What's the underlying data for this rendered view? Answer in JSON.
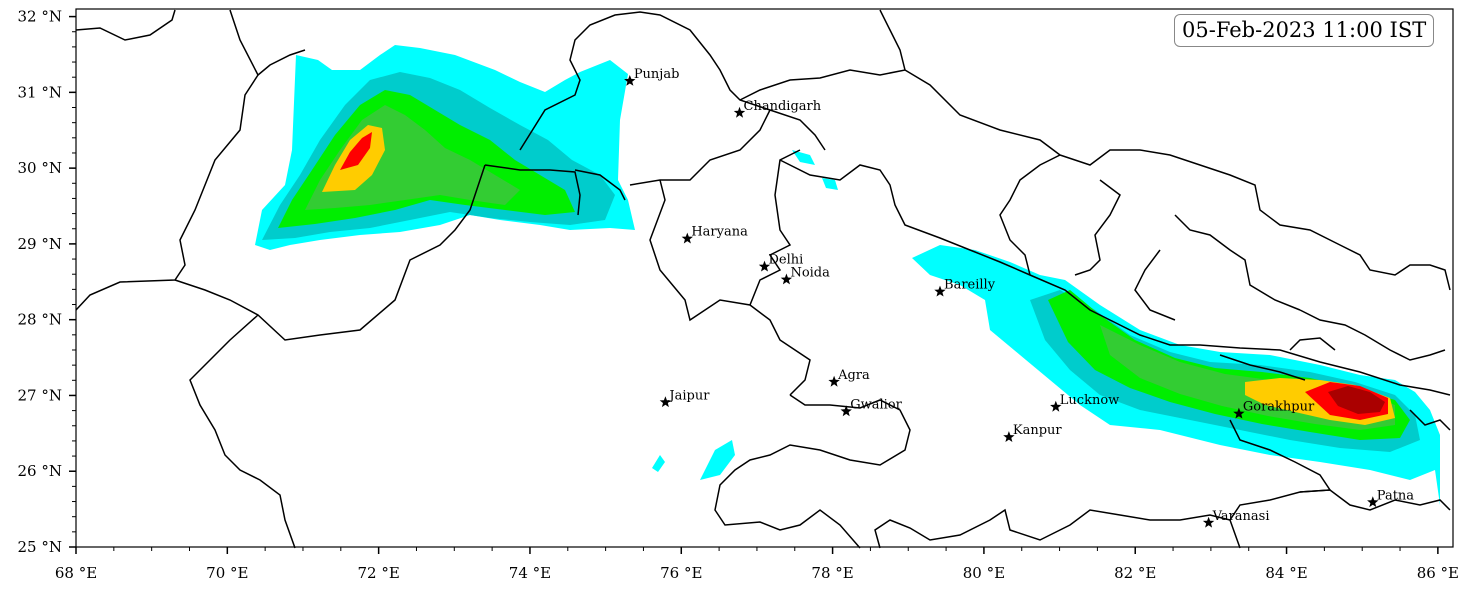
{
  "timestamp": "05-Feb-2023 11:00 IST",
  "axes": {
    "lon_min": 68,
    "lon_max": 86.2,
    "lat_min": 25,
    "lat_max": 32.1,
    "x_ticks": [
      {
        "value": 68,
        "label": "68 °E"
      },
      {
        "value": 70,
        "label": "70 °E"
      },
      {
        "value": 72,
        "label": "72 °E"
      },
      {
        "value": 74,
        "label": "74 °E"
      },
      {
        "value": 76,
        "label": "76 °E"
      },
      {
        "value": 78,
        "label": "78 °E"
      },
      {
        "value": 80,
        "label": "80 °E"
      },
      {
        "value": 82,
        "label": "82 °E"
      },
      {
        "value": 84,
        "label": "84 °E"
      },
      {
        "value": 86,
        "label": "86 °E"
      }
    ],
    "y_ticks": [
      {
        "value": 25,
        "label": "25 °N"
      },
      {
        "value": 26,
        "label": "26 °N"
      },
      {
        "value": 27,
        "label": "27 °N"
      },
      {
        "value": 28,
        "label": "28 °N"
      },
      {
        "value": 29,
        "label": "29 °N"
      },
      {
        "value": 30,
        "label": "30 °N"
      },
      {
        "value": 31,
        "label": "31 °N"
      },
      {
        "value": 32,
        "label": "32 °N"
      }
    ]
  },
  "cities": [
    {
      "name": "Punjab",
      "lon": 75.32,
      "lat": 31.15
    },
    {
      "name": "Chandigarh",
      "lon": 76.77,
      "lat": 30.73
    },
    {
      "name": "Haryana",
      "lon": 76.08,
      "lat": 29.07
    },
    {
      "name": "Delhi",
      "lon": 77.1,
      "lat": 28.7
    },
    {
      "name": "Noida",
      "lon": 77.39,
      "lat": 28.53
    },
    {
      "name": "Bareilly",
      "lon": 79.42,
      "lat": 28.37
    },
    {
      "name": "Agra",
      "lon": 78.02,
      "lat": 27.18
    },
    {
      "name": "Jaipur",
      "lon": 75.79,
      "lat": 26.91
    },
    {
      "name": "Gwalior",
      "lon": 78.18,
      "lat": 26.79
    },
    {
      "name": "Lucknow",
      "lon": 80.95,
      "lat": 26.85
    },
    {
      "name": "Kanpur",
      "lon": 80.33,
      "lat": 26.45
    },
    {
      "name": "Gorakhpur",
      "lon": 83.37,
      "lat": 26.76
    },
    {
      "name": "Varanasi",
      "lon": 82.97,
      "lat": 25.32
    },
    {
      "name": "Patna",
      "lon": 85.14,
      "lat": 25.59
    }
  ],
  "intensity_colors": [
    "#00ffff",
    "#00cccc",
    "#00ee00",
    "#33cc33",
    "#ffcc00",
    "#ff0000",
    "#aa0000"
  ],
  "map_colors": {
    "frame": "#000000",
    "border": "#000000",
    "background": "#ffffff"
  }
}
